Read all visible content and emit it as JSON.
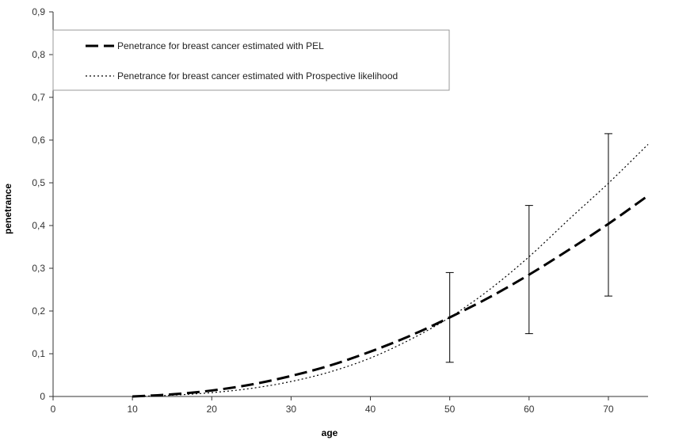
{
  "chart_data": {
    "type": "line",
    "xlabel": "age",
    "ylabel": "penetrance",
    "xlim": [
      0,
      75
    ],
    "ylim": [
      0,
      0.9
    ],
    "x_ticks": [
      0,
      10,
      20,
      30,
      40,
      50,
      60,
      70
    ],
    "y_ticks": [
      0,
      0.1,
      0.2,
      0.3,
      0.4,
      0.5,
      0.6,
      0.7,
      0.8,
      0.9
    ],
    "x_tick_labels": [
      "0",
      "10",
      "20",
      "30",
      "40",
      "50",
      "60",
      "70"
    ],
    "y_tick_labels": [
      "0",
      "0,1",
      "0,2",
      "0,3",
      "0,4",
      "0,5",
      "0,6",
      "0,7",
      "0,8",
      "0,9"
    ],
    "grid": false,
    "legend_position": "top-left",
    "series": [
      {
        "name": "Penetrance for breast cancer estimated with PEL",
        "style": "dashed",
        "color": "#000000",
        "x": [
          10,
          15,
          20,
          25,
          30,
          35,
          40,
          45,
          50,
          55,
          60,
          65,
          70,
          75
        ],
        "y": [
          0.0,
          0.005,
          0.014,
          0.028,
          0.048,
          0.073,
          0.105,
          0.142,
          0.185,
          0.232,
          0.285,
          0.343,
          0.404,
          0.47
        ]
      },
      {
        "name": "Penetrance for breast cancer estimated with Prospective likelihood",
        "style": "dotted",
        "color": "#000000",
        "x": [
          10,
          15,
          20,
          25,
          30,
          35,
          40,
          45,
          50,
          55,
          60,
          65,
          70,
          75
        ],
        "y": [
          0.0,
          0.003,
          0.009,
          0.019,
          0.035,
          0.058,
          0.09,
          0.133,
          0.185,
          0.25,
          0.327,
          0.414,
          0.499,
          0.59
        ]
      }
    ],
    "error_bars": [
      {
        "x": 50,
        "low": 0.08,
        "high": 0.29
      },
      {
        "x": 60,
        "low": 0.147,
        "high": 0.447
      },
      {
        "x": 70,
        "low": 0.235,
        "high": 0.615
      }
    ]
  }
}
